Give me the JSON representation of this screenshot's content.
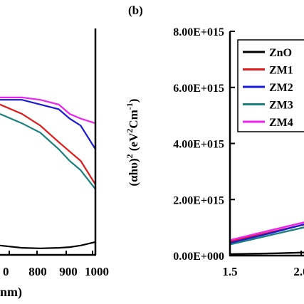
{
  "panel_label": "(b)",
  "colors": {
    "ZnO": "#000000",
    "ZM1": "#e01a1a",
    "ZM2": "#1a1ad6",
    "ZM3": "#1a8080",
    "ZM4": "#ee22ee"
  },
  "chart_data": [
    {
      "type": "line",
      "panel": "(a)",
      "xlabel": "nm)",
      "ylabel": "",
      "x_ticks": [
        "0",
        "800",
        "900",
        "1000"
      ],
      "xlim_visible": [
        740,
        1000
      ],
      "series": [
        {
          "name": "ZnO",
          "x": [
            740,
            800,
            850,
            900,
            930,
            960,
            1000
          ],
          "y": [
            0.04,
            0.03,
            0.028,
            0.03,
            0.033,
            0.04,
            0.055
          ]
        },
        {
          "name": "ZM1",
          "x": [
            740,
            800,
            850,
            900,
            930,
            960,
            1000
          ],
          "y": [
            0.64,
            0.6,
            0.55,
            0.48,
            0.44,
            0.4,
            0.3
          ]
        },
        {
          "name": "ZM2",
          "x": [
            740,
            800,
            850,
            900,
            930,
            960,
            1000
          ],
          "y": [
            0.66,
            0.66,
            0.64,
            0.62,
            0.58,
            0.55,
            0.45
          ]
        },
        {
          "name": "ZM3",
          "x": [
            740,
            800,
            850,
            900,
            930,
            960,
            1000
          ],
          "y": [
            0.6,
            0.56,
            0.52,
            0.45,
            0.4,
            0.36,
            0.28
          ]
        },
        {
          "name": "ZM4",
          "x": [
            740,
            800,
            850,
            900,
            930,
            960,
            1000
          ],
          "y": [
            0.67,
            0.67,
            0.66,
            0.64,
            0.6,
            0.58,
            0.56
          ]
        }
      ]
    },
    {
      "type": "line",
      "panel": "(b)",
      "ylabel_parts": {
        "prefix": "(αhυ)",
        "sup1": "2",
        "mid": " (eV",
        "sup2": "2",
        "cm": "Cm",
        "sup3": "-1",
        "suffix": ")"
      },
      "y_ticks": [
        "0.00E+000",
        "2.00E+015",
        "4.00E+015",
        "6.00E+015",
        "8.00E+015"
      ],
      "ylim": [
        0,
        8000000000000000.0
      ],
      "x_ticks": [
        "1.5",
        "2.0"
      ],
      "x_tick_values": [
        1.5,
        2.0
      ],
      "legend": [
        "ZnO",
        "ZM1",
        "ZM2",
        "ZM3",
        "ZM4"
      ],
      "legend_position": "top-right",
      "series": [
        {
          "name": "ZnO",
          "x": [
            1.5,
            1.8,
            2.1,
            2.27
          ],
          "y": [
            50000000000000.0,
            80000000000000.0,
            120000000000000.0,
            150000000000000.0
          ]
        },
        {
          "name": "ZM1",
          "x": [
            1.5,
            1.8,
            2.1,
            2.27
          ],
          "y": [
            500000000000000.0,
            850000000000000.0,
            1200000000000000.0,
            1400000000000000.0
          ]
        },
        {
          "name": "ZM2",
          "x": [
            1.5,
            1.8,
            2.1,
            2.27
          ],
          "y": [
            450000000000000.0,
            820000000000000.0,
            1220000000000000.0,
            1450000000000000.0
          ]
        },
        {
          "name": "ZM3",
          "x": [
            1.5,
            1.8,
            2.1,
            2.27
          ],
          "y": [
            400000000000000.0,
            750000000000000.0,
            1100000000000000.0,
            1300000000000000.0
          ]
        },
        {
          "name": "ZM4",
          "x": [
            1.5,
            1.8,
            2.1,
            2.27
          ],
          "y": [
            550000000000000.0,
            920000000000000.0,
            1280000000000000.0,
            1500000000000000.0
          ]
        }
      ]
    }
  ]
}
